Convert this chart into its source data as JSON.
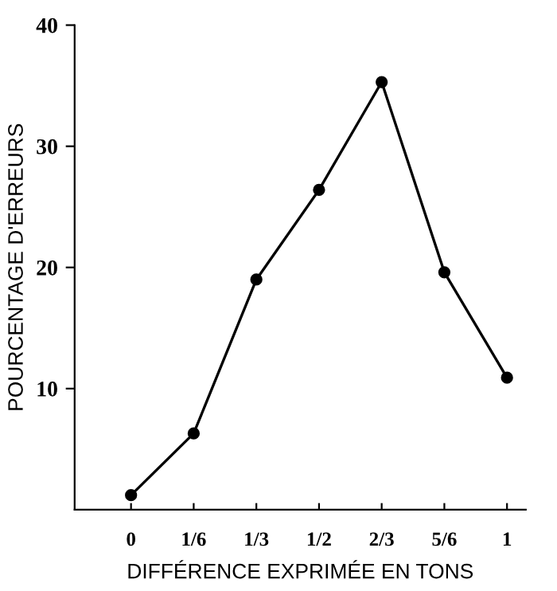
{
  "chart_data": {
    "type": "line",
    "xlabel": "DIFFÉRENCE EXPRIMÉE EN TONS",
    "ylabel": "POURCENTAGE D'ERREURS",
    "categories": [
      "0",
      "1/6",
      "1/3",
      "1/2",
      "2/3",
      "5/6",
      "1"
    ],
    "values": [
      1.2,
      6.3,
      19.0,
      26.4,
      35.3,
      19.6,
      10.9
    ],
    "color": "#000000",
    "marker": "circle",
    "line_style": "solid",
    "ylim": [
      0,
      40
    ],
    "yticks": [
      10,
      20,
      30,
      40
    ],
    "grid": false
  }
}
